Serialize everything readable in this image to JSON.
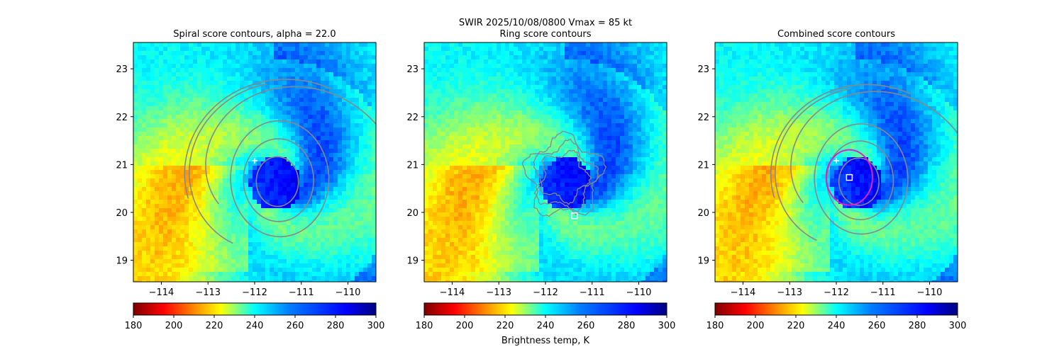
{
  "figure": {
    "suptitle_line1": "SWIR  2025/10/08/0800    Vmax = 85 kt"
  },
  "chart_data": [
    {
      "type": "heatmap",
      "title": "Spiral score contours, alpha = 22.0",
      "xlim": [
        -114.6,
        -109.4
      ],
      "ylim": [
        18.55,
        23.55
      ],
      "xticks": [
        -114,
        -113,
        -112,
        -111,
        -110
      ],
      "yticks": [
        19,
        20,
        21,
        22,
        23
      ],
      "xtick_labels": [
        "−114",
        "−113",
        "−112",
        "−111",
        "−110"
      ],
      "ytick_labels": [
        "19",
        "20",
        "21",
        "22",
        "23"
      ],
      "colorbar": {
        "min": 180,
        "max": 300,
        "ticks": [
          180,
          200,
          220,
          240,
          260,
          280,
          300
        ],
        "tick_labels": [
          "180",
          "200",
          "220",
          "240",
          "260",
          "280",
          "300"
        ],
        "colormap": "jet_r",
        "label": ""
      },
      "storm_center": [
        -111.55,
        20.6
      ],
      "markers": [
        {
          "symbol": "plus",
          "lon": -112.0,
          "lat": 21.08,
          "color": "#ffffff"
        }
      ],
      "contour_color": "#888888",
      "contour_style": "spiral"
    },
    {
      "type": "heatmap",
      "title": "Ring score contours",
      "xlim": [
        -114.6,
        -109.4
      ],
      "ylim": [
        18.55,
        23.55
      ],
      "xticks": [
        -114,
        -113,
        -112,
        -111,
        -110
      ],
      "yticks": [
        19,
        20,
        21,
        22,
        23
      ],
      "xtick_labels": [
        "−114",
        "−113",
        "−112",
        "−111",
        "−110"
      ],
      "ytick_labels": [
        "19",
        "20",
        "21",
        "22",
        "23"
      ],
      "colorbar": {
        "min": 180,
        "max": 300,
        "ticks": [
          180,
          200,
          220,
          240,
          260,
          280,
          300
        ],
        "tick_labels": [
          "180",
          "200",
          "220",
          "240",
          "260",
          "280",
          "300"
        ],
        "colormap": "jet_r",
        "label": "Brightness temp, K"
      },
      "storm_center": [
        -111.55,
        20.6
      ],
      "markers": [
        {
          "symbol": "square",
          "lon": -111.38,
          "lat": 19.93,
          "color": "#ffffff"
        }
      ],
      "contour_color": "#888888",
      "contour_style": "ring"
    },
    {
      "type": "heatmap",
      "title": "Combined score contours",
      "xlim": [
        -114.6,
        -109.4
      ],
      "ylim": [
        18.55,
        23.55
      ],
      "xticks": [
        -114,
        -113,
        -112,
        -111,
        -110
      ],
      "yticks": [
        19,
        20,
        21,
        22,
        23
      ],
      "xtick_labels": [
        "−114",
        "−113",
        "−112",
        "−111",
        "−110"
      ],
      "ytick_labels": [
        "19",
        "20",
        "21",
        "22",
        "23"
      ],
      "colorbar": {
        "min": 180,
        "max": 300,
        "ticks": [
          180,
          200,
          220,
          240,
          260,
          280,
          300
        ],
        "tick_labels": [
          "180",
          "200",
          "220",
          "240",
          "260",
          "280",
          "300"
        ],
        "colormap": "jet_r",
        "label": ""
      },
      "storm_center": [
        -111.55,
        20.6
      ],
      "markers": [
        {
          "symbol": "plus",
          "lon": -112.0,
          "lat": 21.08,
          "color": "#ffffff"
        },
        {
          "symbol": "square",
          "lon": -111.72,
          "lat": 20.73,
          "color": "#ffffff"
        }
      ],
      "highlight_contour": {
        "color": "#e020c0",
        "center_lon": -111.72,
        "center_lat": 20.73,
        "radius_deg": 0.55
      },
      "contour_color": "#888888",
      "contour_style": "combined"
    }
  ]
}
